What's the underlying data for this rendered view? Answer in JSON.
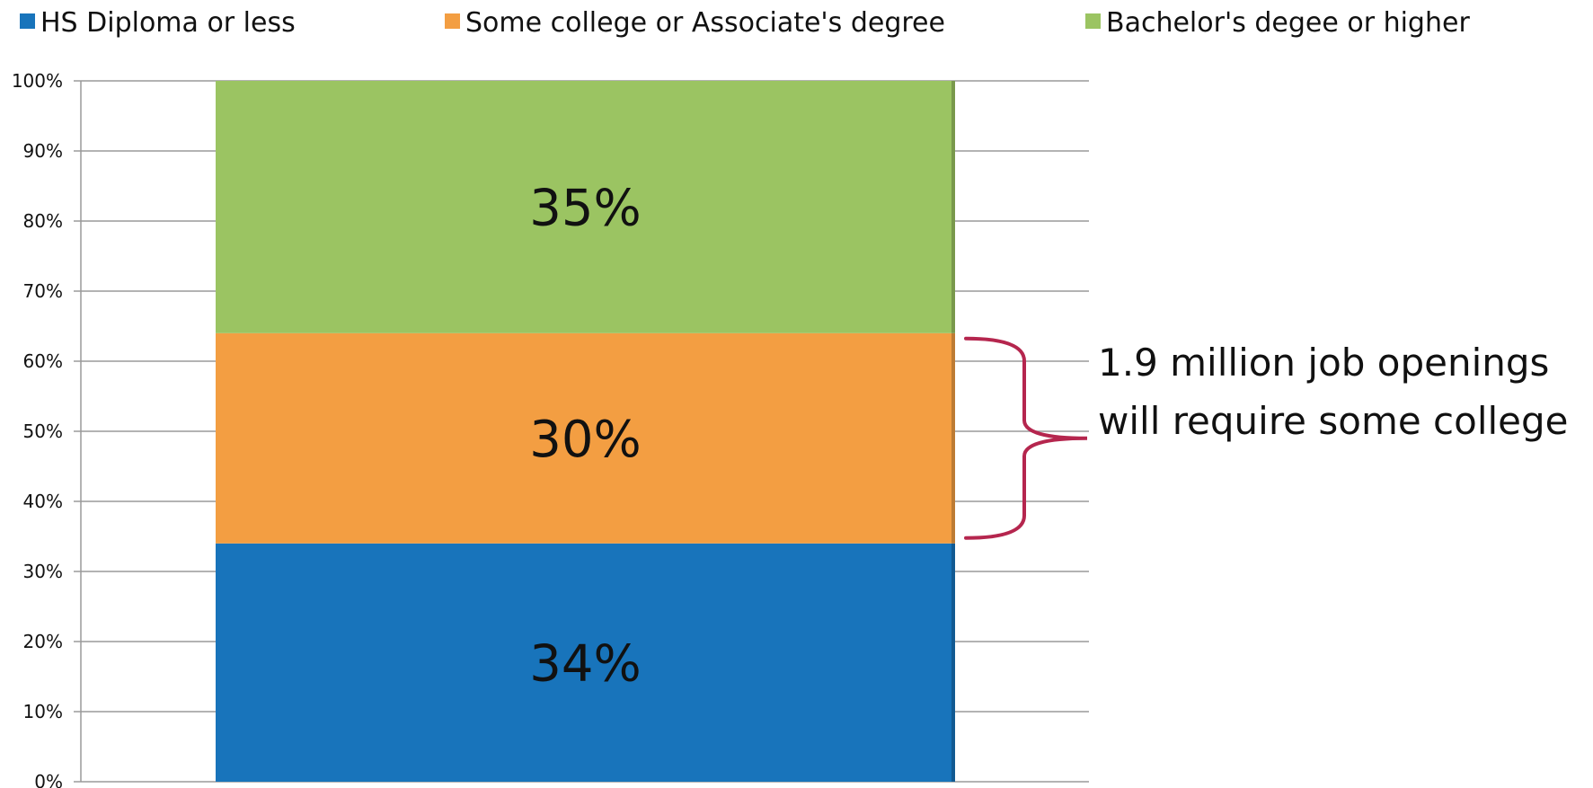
{
  "chart_data": {
    "type": "bar",
    "stacked": true,
    "categories": [
      ""
    ],
    "series": [
      {
        "name": "HS Diploma or less",
        "values": [
          34
        ],
        "label": "34%",
        "color": "#1874BB"
      },
      {
        "name": "Some college or Associate's degree",
        "values": [
          30
        ],
        "label": "30%",
        "color": "#F39E42"
      },
      {
        "name": "Bachelor's degee or higher",
        "values": [
          35
        ],
        "label": "35%",
        "color": "#9BC462"
      }
    ],
    "ylim": [
      0,
      100
    ],
    "yticks": [
      "0%",
      "10%",
      "20%",
      "30%",
      "40%",
      "50%",
      "60%",
      "70%",
      "80%",
      "90%",
      "100%"
    ],
    "grid": true,
    "legend_position": "top",
    "annotation": {
      "lines": [
        "1.9 million job openings",
        "will require some college"
      ],
      "bracket_color": "#B5264E",
      "brackets_series": "Some college or Associate's degree"
    }
  }
}
